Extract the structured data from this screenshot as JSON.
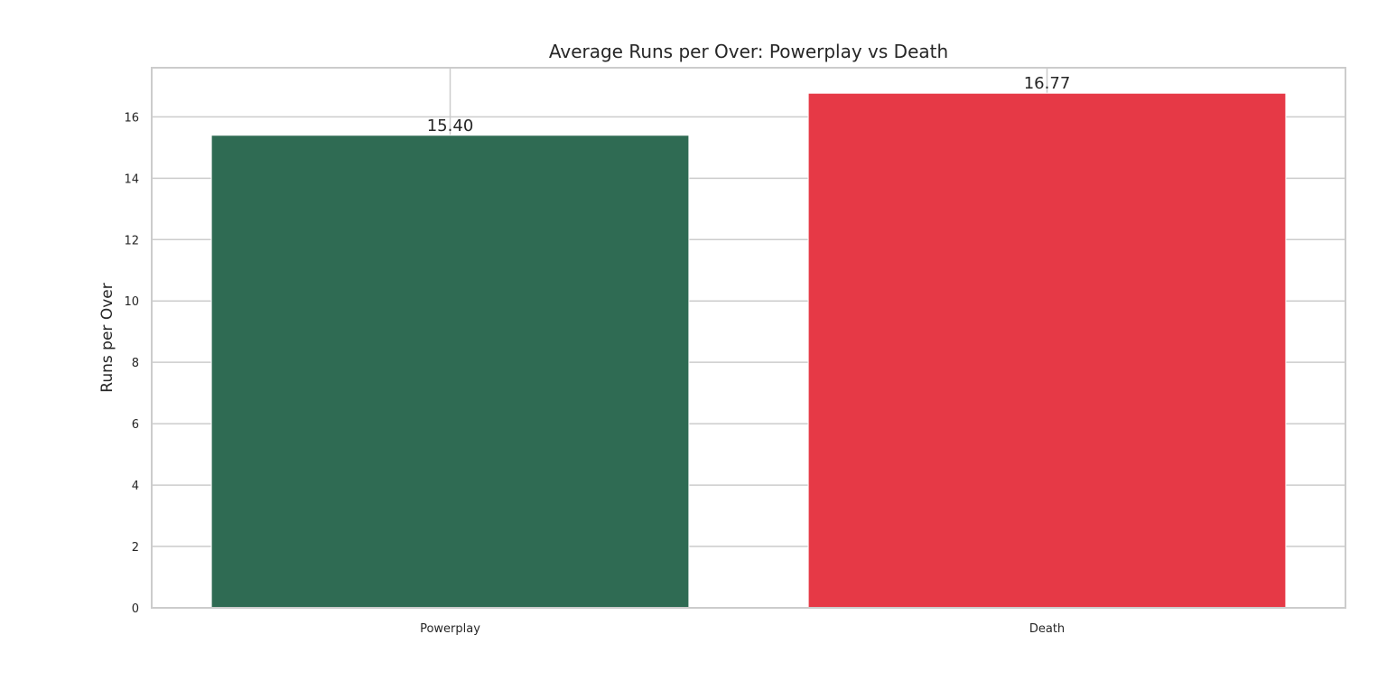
{
  "chart_data": {
    "type": "bar",
    "title": "Average Runs per Over: Powerplay vs Death",
    "xlabel": "",
    "ylabel": "Runs per Over",
    "categories": [
      "Powerplay",
      "Death"
    ],
    "values": [
      15.4,
      16.77
    ],
    "data_labels": [
      "15.40",
      "16.77"
    ],
    "colors": [
      "#2f6b53",
      "#e63946"
    ],
    "ylim": [
      0,
      17.6
    ],
    "yticks": [
      0,
      2,
      4,
      6,
      8,
      10,
      12,
      14,
      16
    ],
    "grid": true,
    "legend": "none"
  }
}
